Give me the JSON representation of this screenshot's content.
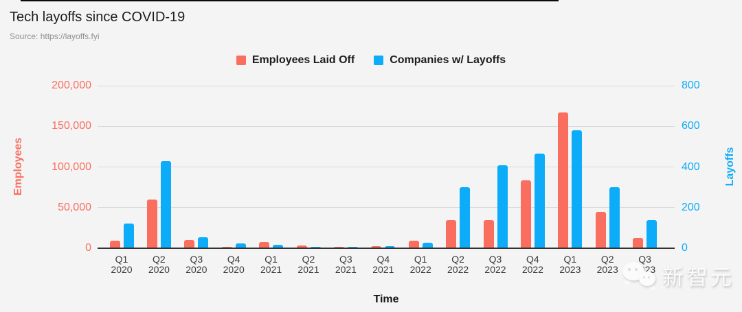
{
  "header": {
    "title": "Tech layoffs since COVID-19",
    "source": "Source: https://layoffs.fyi"
  },
  "legend": {
    "items": [
      {
        "label": "Employees Laid Off",
        "color": "#fa6e5f"
      },
      {
        "label": "Companies w/ Layoffs",
        "color": "#0cacf8"
      }
    ]
  },
  "chart_data": {
    "type": "bar",
    "title": "Tech layoffs since COVID-19",
    "categories": [
      "Q1 2020",
      "Q2 2020",
      "Q3 2020",
      "Q4 2020",
      "Q1 2021",
      "Q2 2021",
      "Q3 2021",
      "Q4 2021",
      "Q1 2022",
      "Q2 2022",
      "Q3 2022",
      "Q4 2022",
      "Q1 2023",
      "Q2 2023",
      "Q3 2023"
    ],
    "series": [
      {
        "name": "Employees Laid Off",
        "axis": "left",
        "color": "#fa6e5f",
        "values": [
          9500,
          60000,
          9900,
          1700,
          8000,
          3100,
          2100,
          2400,
          9500,
          35000,
          35000,
          83500,
          167500,
          45000,
          12500
        ]
      },
      {
        "name": "Companies w/ Layoffs",
        "axis": "right",
        "color": "#0cacf8",
        "values": [
          120,
          430,
          55,
          24,
          16,
          6,
          8,
          10,
          28,
          300,
          410,
          467,
          580,
          300,
          140
        ]
      }
    ],
    "xlabel": "Time",
    "left_axis": {
      "label": "Employees",
      "min": 0,
      "max": 200000,
      "ticks": [
        "0",
        "50,000",
        "100,000",
        "150,000",
        "200,000"
      ],
      "color": "#fa6e5f"
    },
    "right_axis": {
      "label": "Layoffs",
      "min": 0,
      "max": 800,
      "ticks": [
        "0",
        "200",
        "400",
        "600",
        "800"
      ],
      "color": "#0cacf8"
    },
    "grid": true,
    "legend_position": "top",
    "background": "#f4f4f4"
  },
  "watermark": {
    "text": "新智元",
    "icon": "wechat-icon"
  }
}
